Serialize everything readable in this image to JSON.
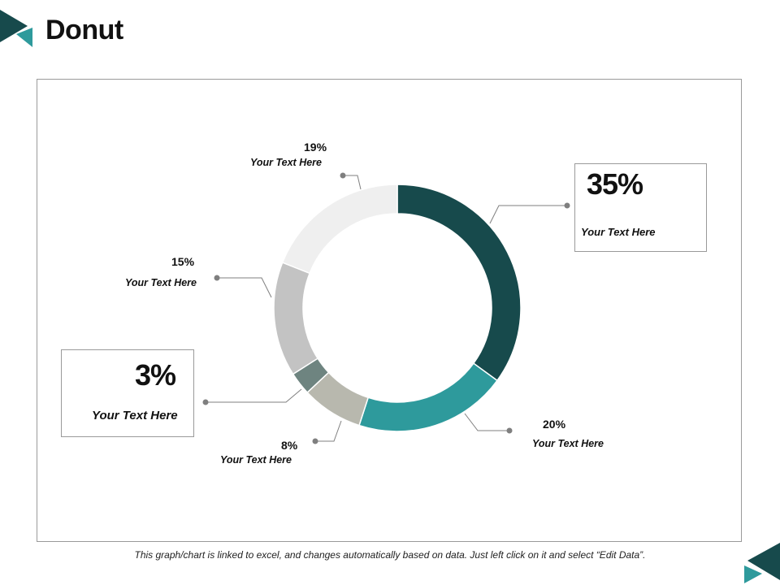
{
  "page": {
    "title": "Donut",
    "footer": "This graph/chart is linked to excel, and changes automatically based on data. Just left click on it and select “Edit Data”."
  },
  "colors": {
    "accent_dark": "#174a4c",
    "accent_teal": "#2e9a9c",
    "leader_line": "#7f7f7f",
    "leader_dot": "#7f7f7f"
  },
  "chart_data": {
    "type": "pie",
    "style": "donut",
    "start": "top, clockwise",
    "slices": [
      {
        "label": "Your Text Here",
        "value": 35,
        "display": "35%",
        "color": "#174a4c"
      },
      {
        "label": "Your Text Here",
        "value": 20,
        "display": "20%",
        "color": "#2e9a9c"
      },
      {
        "label": "Your Text Here",
        "value": 8,
        "display": "8%",
        "color": "#b8b8ae"
      },
      {
        "label": "Your Text Here",
        "value": 3,
        "display": "3%",
        "color": "#6e8480"
      },
      {
        "label": "Your Text Here",
        "value": 15,
        "display": "15%",
        "color": "#c3c3c3"
      },
      {
        "label": "Your Text Here",
        "value": 19,
        "display": "19%",
        "color": "#efefef"
      }
    ]
  }
}
